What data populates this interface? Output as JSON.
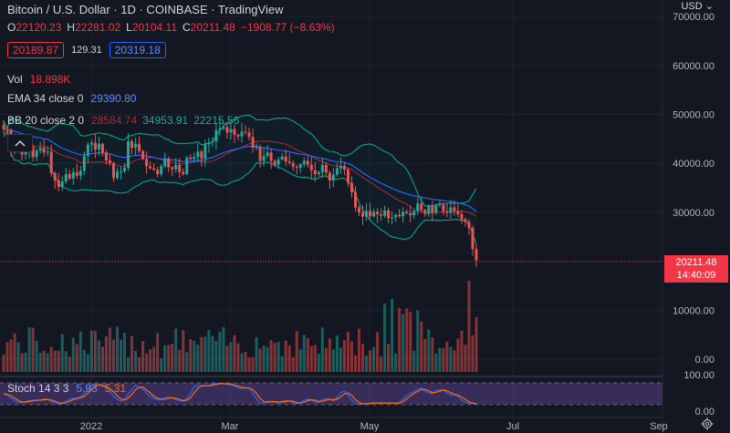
{
  "header": {
    "title": "Bitcoin / U.S. Dollar · 1D · COINBASE · TradingView",
    "ohlc": {
      "o_label": "O",
      "o": "22120.23",
      "h_label": "H",
      "h": "22281.02",
      "l_label": "L",
      "l": "20104.11",
      "c_label": "C",
      "c": "20211.48",
      "change": "−1908.77 (−8.63%)"
    },
    "bid": "20189.87",
    "spread": "129.31",
    "ask": "20319.18"
  },
  "indicators": {
    "vol": {
      "label": "Vol",
      "value": "18.898K"
    },
    "ema": {
      "label": "EMA 34 close 0",
      "value": "29390.80"
    },
    "bb": {
      "label": "BB 20 close 2 0",
      "basis": "28584.74",
      "upper": "34953.91",
      "lower": "22215.56"
    },
    "stoch": {
      "label": "Stoch 14 3 3",
      "k": "5.93",
      "d": "5.31"
    }
  },
  "price_axis": {
    "currency": "USD",
    "labels": [
      "70000.00",
      "60000.00",
      "50000.00",
      "40000.00",
      "30000.00",
      "20000.00",
      "10000.00",
      "0.00"
    ],
    "current_price": "20211.48",
    "countdown": "14:40:09"
  },
  "stoch_axis": {
    "labels": [
      "100.00",
      "0.00"
    ]
  },
  "time_axis": {
    "labels": [
      "2022",
      "Mar",
      "May",
      "Jul",
      "Sep"
    ]
  },
  "colors": {
    "bg": "#131722",
    "up": "#26a69a",
    "down": "#ef5350",
    "ema": "#2962ff",
    "bb": "#089981",
    "stoch_k": "#2962ff",
    "stoch_d": "#ff6d00",
    "stoch_band": "#7e57c2"
  },
  "chart_data": {
    "type": "candlestick",
    "symbol": "BTCUSD",
    "interval": "1D",
    "ylim": [
      0,
      75000
    ],
    "series_close": [
      47000,
      46800,
      43000,
      42500,
      43200,
      41800,
      42700,
      43500,
      41300,
      42600,
      43100,
      42200,
      42400,
      38000,
      36500,
      35200,
      36300,
      37800,
      36900,
      38200,
      37500,
      38500,
      41500,
      43800,
      44200,
      42800,
      44000,
      42200,
      40600,
      40100,
      37000,
      38300,
      38400,
      39100,
      44500,
      43200,
      44000,
      42500,
      40900,
      39400,
      39000,
      38700,
      37800,
      39400,
      41000,
      39200,
      38800,
      39700,
      38200,
      37800,
      41200,
      40900,
      41300,
      42400,
      41000,
      43900,
      44300,
      44500,
      46800,
      47100,
      47400,
      46300,
      47000,
      45800,
      45500,
      46500,
      46300,
      45400,
      43200,
      43300,
      40500,
      41500,
      42200,
      40500,
      39700,
      40800,
      41400,
      40400,
      40100,
      39300,
      39100,
      39800,
      40500,
      39700,
      38600,
      37800,
      38200,
      39700,
      38100,
      36500,
      37700,
      39000,
      39500,
      38700,
      36000,
      34100,
      31000,
      30000,
      29100,
      30300,
      29200,
      30100,
      29600,
      29300,
      30400,
      28800,
      29000,
      29500,
      29200,
      30100,
      29800,
      29400,
      30300,
      31800,
      30500,
      29700,
      31300,
      29900,
      31400,
      31600,
      30200,
      29900,
      31000,
      30300,
      29600,
      28600,
      28100,
      26800,
      22500,
      20211.48
    ],
    "volume_note": "daily volume bars under price"
  }
}
